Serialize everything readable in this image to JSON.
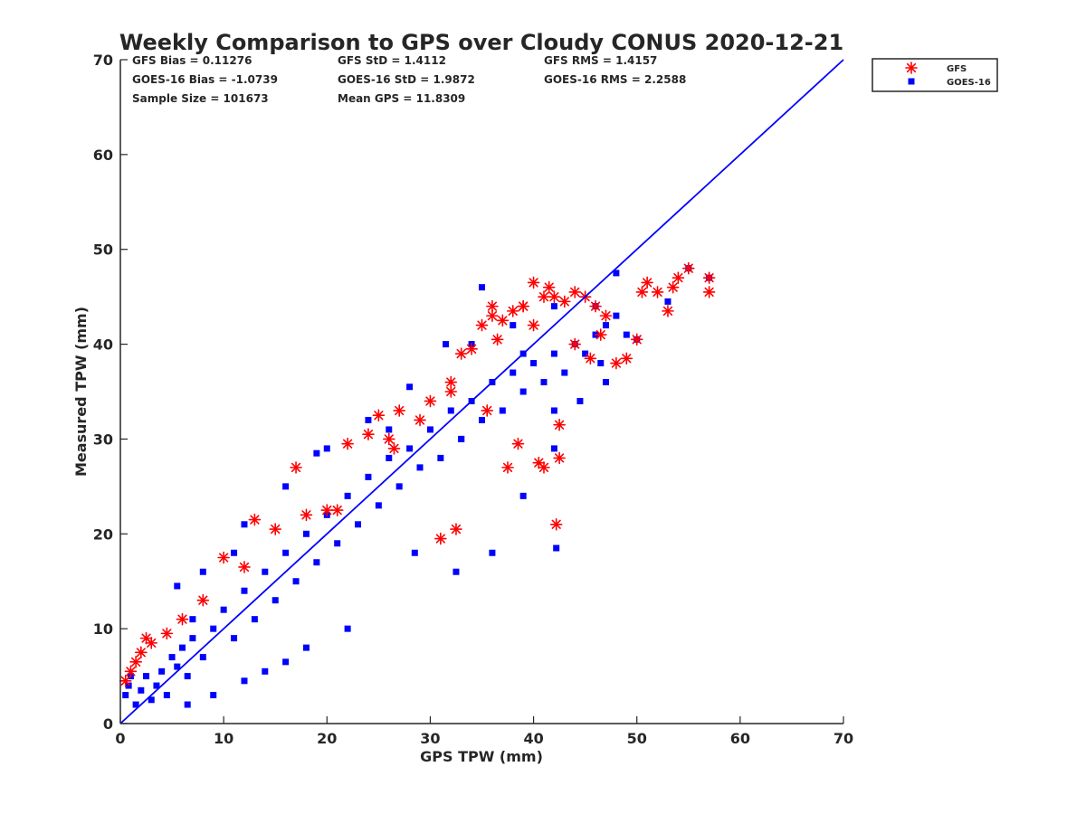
{
  "chart_data": {
    "type": "scatter",
    "title": "Weekly Comparison to GPS over Cloudy CONUS 2020-12-21",
    "xlabel": "GPS TPW (mm)",
    "ylabel": "Measured TPW (mm)",
    "xlim": [
      0,
      70
    ],
    "ylim": [
      0,
      70
    ],
    "xticks": [
      "0",
      "10",
      "20",
      "30",
      "40",
      "50",
      "60",
      "70"
    ],
    "yticks": [
      "0",
      "10",
      "20",
      "30",
      "40",
      "50",
      "60",
      "70"
    ],
    "grid": false,
    "legend_position": "outside top-right",
    "stats": [
      [
        "GFS Bias = 0.11276",
        "GFS StD = 1.4112",
        "GFS RMS = 1.4157"
      ],
      [
        "GOES-16 Bias = -1.0739",
        "GOES-16 StD = 1.9872",
        "GOES-16 RMS = 2.2588"
      ],
      [
        "Sample Size = 101673",
        "Mean GPS = 11.8309",
        ""
      ]
    ],
    "reference_line": {
      "x": [
        0,
        70
      ],
      "y": [
        0,
        70
      ],
      "color": "#0000ff"
    },
    "series": [
      {
        "name": "GFS",
        "marker": "asterisk",
        "color": "#ff0000",
        "x": [
          0.5,
          1.0,
          1.5,
          2.0,
          3.0,
          2.5,
          4.5,
          6.0,
          8.0,
          10.0,
          13.0,
          12.0,
          15.0,
          18.0,
          20.0,
          17.0,
          22.0,
          24.0,
          25.0,
          27.0,
          26.0,
          29.0,
          30.0,
          32.0,
          33.0,
          34.0,
          35.0,
          36.0,
          37.0,
          38.0,
          39.0,
          40.0,
          41.0,
          42.0,
          43.0,
          44.0,
          45.0,
          46.0,
          47.0,
          35.5,
          38.5,
          40.5,
          41.0,
          42.5,
          42.5,
          42.2,
          32.5,
          31.0,
          37.5,
          49.0,
          48.0,
          50.0,
          52.0,
          53.0,
          54.0,
          55.0,
          57.0,
          57.0,
          53.5,
          51.0,
          50.5,
          46.5,
          44.0,
          45.5,
          32.0,
          36.5,
          39.0,
          41.5,
          40.0,
          36.0,
          26.5,
          21.0
        ],
        "y": [
          4.5,
          5.5,
          6.5,
          7.5,
          8.5,
          9.0,
          9.5,
          11.0,
          13.0,
          17.5,
          21.5,
          16.5,
          20.5,
          22.0,
          22.5,
          27.0,
          29.5,
          30.5,
          32.5,
          33.0,
          30.0,
          32.0,
          34.0,
          36.0,
          39.0,
          39.5,
          42.0,
          43.0,
          42.5,
          43.5,
          44.0,
          46.5,
          45.0,
          45.0,
          44.5,
          45.5,
          45.0,
          44.0,
          43.0,
          33.0,
          29.5,
          27.5,
          27.0,
          31.5,
          28.0,
          21.0,
          20.5,
          19.5,
          27.0,
          38.5,
          38.0,
          40.5,
          45.5,
          43.5,
          47.0,
          48.0,
          47.0,
          45.5,
          46.0,
          46.5,
          45.5,
          41.0,
          40.0,
          38.5,
          35.0,
          40.5,
          44.0,
          46.0,
          42.0,
          44.0,
          29.0,
          22.5
        ]
      },
      {
        "name": "GOES-16",
        "marker": "square",
        "color": "#0000ff",
        "x": [
          0.5,
          0.8,
          1.0,
          1.5,
          2.0,
          2.5,
          3.0,
          3.5,
          4.0,
          4.5,
          5.0,
          5.5,
          6.0,
          6.5,
          7.0,
          8.0,
          9.0,
          10.0,
          11.0,
          12.0,
          13.0,
          14.0,
          15.0,
          16.0,
          17.0,
          18.0,
          19.0,
          20.0,
          21.0,
          22.0,
          23.0,
          24.0,
          25.0,
          26.0,
          27.0,
          28.0,
          29.0,
          30.0,
          31.0,
          32.0,
          33.0,
          34.0,
          35.0,
          36.0,
          37.0,
          38.0,
          39.0,
          40.0,
          41.0,
          42.0,
          43.0,
          44.0,
          45.0,
          46.0,
          47.0,
          48.0,
          5.5,
          8.0,
          12.0,
          16.0,
          19.0,
          24.0,
          28.0,
          34.0,
          38.0,
          42.0,
          32.5,
          36.0,
          39.0,
          42.0,
          42.2,
          44.5,
          46.5,
          49.0,
          50.0,
          53.0,
          55.0,
          57.0,
          48.0,
          46.0,
          47.0,
          35.0,
          33.0,
          28.5,
          22.0,
          18.0,
          16.0,
          14.0,
          12.0,
          9.0,
          6.5,
          7.0,
          11.0,
          20.0,
          26.0,
          31.5,
          39.0,
          42.0
        ],
        "y": [
          3.0,
          4.0,
          5.0,
          2.0,
          3.5,
          5.0,
          2.5,
          4.0,
          5.5,
          3.0,
          7.0,
          6.0,
          8.0,
          5.0,
          9.0,
          7.0,
          10.0,
          12.0,
          9.0,
          14.0,
          11.0,
          16.0,
          13.0,
          18.0,
          15.0,
          20.0,
          17.0,
          22.0,
          19.0,
          24.0,
          21.0,
          26.0,
          23.0,
          28.0,
          25.0,
          29.0,
          27.0,
          31.0,
          28.0,
          33.0,
          30.0,
          34.0,
          32.0,
          36.0,
          33.0,
          37.0,
          35.0,
          38.0,
          36.0,
          39.0,
          37.0,
          40.0,
          39.0,
          41.0,
          42.0,
          43.0,
          14.5,
          16.0,
          21.0,
          25.0,
          28.5,
          32.0,
          35.5,
          40.0,
          42.0,
          44.0,
          16.0,
          18.0,
          24.0,
          29.0,
          18.5,
          34.0,
          38.0,
          41.0,
          40.5,
          44.5,
          48.0,
          47.0,
          47.5,
          44.0,
          36.0,
          46.0,
          30.0,
          18.0,
          10.0,
          8.0,
          6.5,
          5.5,
          4.5,
          3.0,
          2.0,
          11.0,
          18.0,
          29.0,
          31.0,
          40.0,
          39.0,
          33.0
        ]
      }
    ]
  }
}
